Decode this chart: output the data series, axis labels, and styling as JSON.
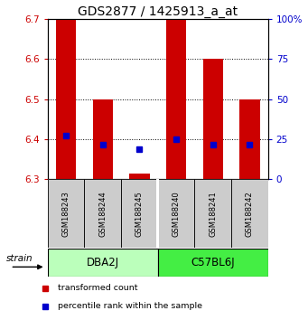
{
  "title": "GDS2877 / 1425913_a_at",
  "samples": [
    "GSM188243",
    "GSM188244",
    "GSM188245",
    "GSM188240",
    "GSM188241",
    "GSM188242"
  ],
  "group_colors": [
    "#bbffbb",
    "#44ee44"
  ],
  "group_names": [
    "DBA2J",
    "C57BL6J"
  ],
  "bar_bottom": 6.3,
  "red_tops": [
    6.7,
    6.5,
    6.315,
    6.7,
    6.6,
    6.5
  ],
  "blue_y": [
    6.41,
    6.387,
    6.376,
    6.401,
    6.387,
    6.387
  ],
  "ylim": [
    6.3,
    6.7
  ],
  "yticks_left": [
    6.3,
    6.4,
    6.5,
    6.6,
    6.7
  ],
  "yticks_right": [
    0,
    25,
    50,
    75,
    100
  ],
  "yticks_right_labels": [
    "0",
    "25",
    "50",
    "75",
    "100%"
  ],
  "bar_color": "#cc0000",
  "blue_color": "#0000cc",
  "bar_width": 0.55,
  "title_fontsize": 10,
  "tick_fontsize": 7.5,
  "sample_bg": "#cccccc",
  "legend_red": "transformed count",
  "legend_blue": "percentile rank within the sample"
}
